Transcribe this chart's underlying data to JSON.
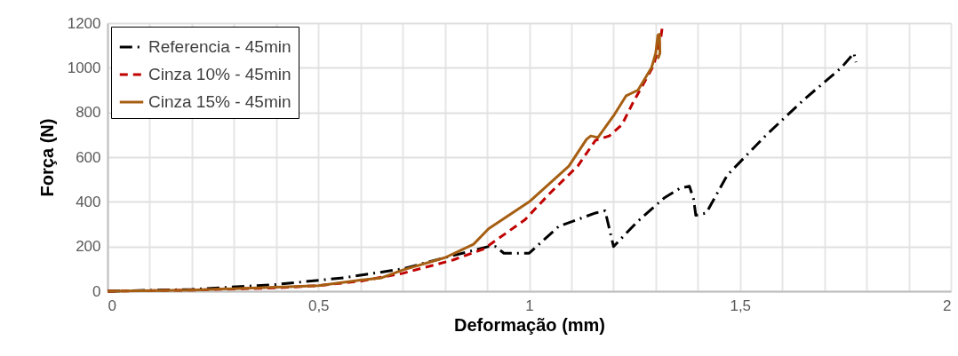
{
  "chart_data": {
    "type": "line",
    "xlabel": "Deformação (mm)",
    "ylabel": "Força  (N)",
    "xlim": [
      0,
      2
    ],
    "ylim": [
      0,
      1200
    ],
    "xticks": [
      0,
      {
        "value": 0.1,
        "label": null
      },
      {
        "value": 0.2,
        "label": null
      },
      {
        "value": 0.3,
        "label": null
      },
      {
        "value": 0.4,
        "label": null
      },
      {
        "value": 0.5,
        "label": "0,5"
      },
      {
        "value": 0.6,
        "label": null
      },
      {
        "value": 0.7,
        "label": null
      },
      {
        "value": 0.8,
        "label": null
      },
      {
        "value": 0.9,
        "label": null
      },
      1,
      {
        "value": 1.1,
        "label": null
      },
      {
        "value": 1.2,
        "label": null
      },
      {
        "value": 1.3,
        "label": null
      },
      {
        "value": 1.4,
        "label": null
      },
      {
        "value": 1.5,
        "label": "1,5"
      },
      {
        "value": 1.6,
        "label": null
      },
      {
        "value": 1.7,
        "label": null
      },
      {
        "value": 1.8,
        "label": null
      },
      {
        "value": 1.9,
        "label": null
      },
      2
    ],
    "yticks": [
      0,
      200,
      400,
      600,
      800,
      1000,
      1200
    ],
    "grid": true,
    "legend": "top left",
    "marker": "none",
    "series": [
      {
        "name": "Referencia - 45min",
        "color": "#000000",
        "line_style": "dashdot",
        "x": [
          0,
          0.2,
          0.4,
          0.56,
          0.7,
          0.8,
          0.904,
          0.92,
          0.94,
          1.0,
          1.07,
          1.157,
          1.18,
          1.2,
          1.256,
          1.32,
          1.357,
          1.38,
          1.39,
          1.395,
          1.42,
          1.47,
          1.56,
          1.65,
          1.74,
          1.77,
          1.775
        ],
        "values": [
          0,
          8,
          30,
          60,
          100,
          150,
          200,
          200,
          170,
          170,
          290,
          350,
          360,
          200,
          310,
          417,
          460,
          470,
          410,
          340,
          350,
          520,
          695,
          855,
          1000,
          1065,
          1025
        ]
      },
      {
        "name": "Cinza 10% - 45min",
        "color": "#c00000",
        "line_style": "dashed",
        "x": [
          0,
          0.2,
          0.4,
          0.5,
          0.6,
          0.7,
          0.82,
          0.893,
          0.99,
          1.05,
          1.115,
          1.157,
          1.19,
          1.22,
          1.245,
          1.295,
          1.313,
          1.315
        ],
        "values": [
          0,
          5,
          15,
          25,
          45,
          80,
          140,
          190,
          320,
          440,
          560,
          675,
          695,
          745,
          840,
          1010,
          1145,
          1175
        ]
      },
      {
        "name": "Cinza 15% - 45min",
        "color": "#a65e12",
        "line_style": "solid",
        "x": [
          0,
          0.2,
          0.4,
          0.5,
          0.6,
          0.65,
          0.7,
          0.8,
          0.868,
          0.904,
          1.0,
          1.094,
          1.136,
          1.146,
          1.163,
          1.2,
          1.23,
          1.258,
          1.29,
          1.3,
          1.305,
          1.309,
          1.31,
          1.305
        ],
        "values": [
          0,
          5,
          18,
          25,
          50,
          60,
          95,
          150,
          210,
          280,
          400,
          560,
          680,
          695,
          688,
          785,
          875,
          900,
          1000,
          1065,
          1145,
          1150,
          1065,
          1040
        ]
      }
    ]
  }
}
